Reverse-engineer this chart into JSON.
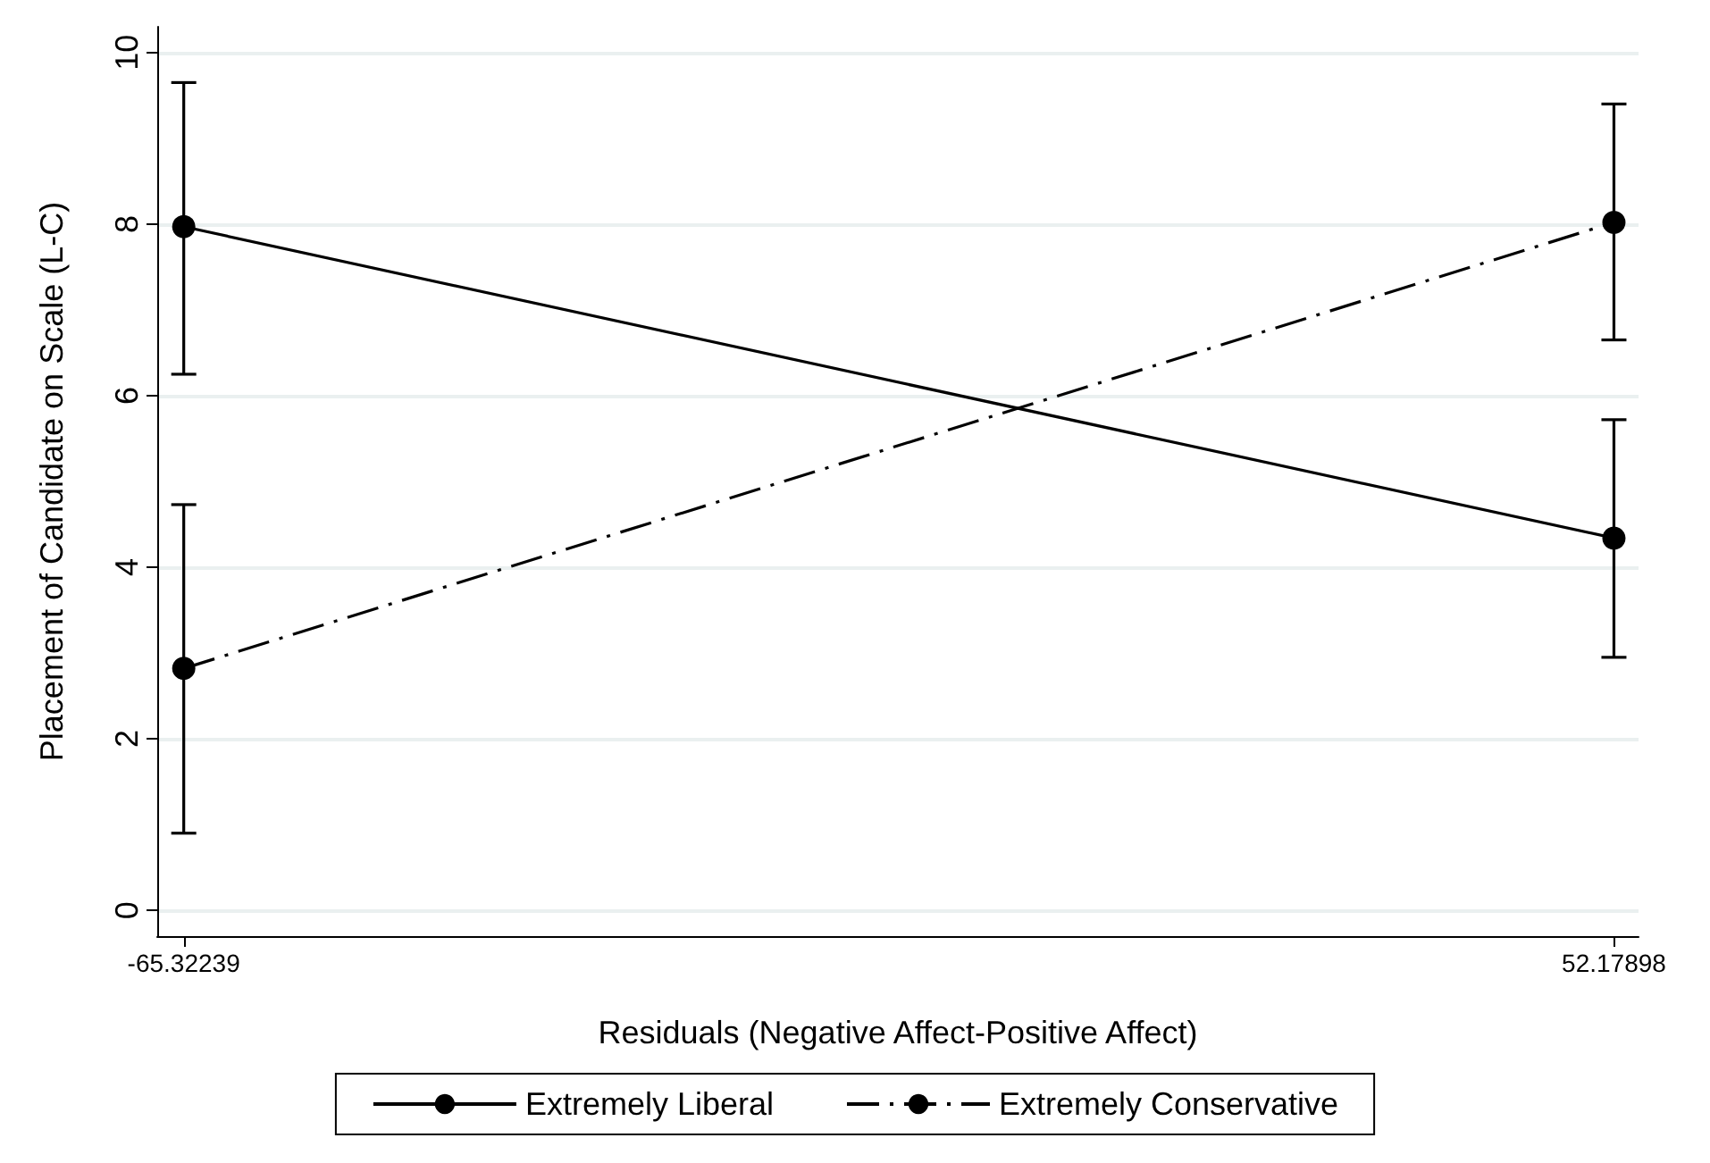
{
  "chart_data": {
    "type": "line",
    "xlabel": "Residuals (Negative Affect-Positive Affect)",
    "ylabel": "Placement of Candidate on Scale (L-C)",
    "x": [
      -65.32239,
      52.17898
    ],
    "xlim": [
      -67.5,
      54.2
    ],
    "xticks": [
      -65.32239,
      52.17898
    ],
    "ylim": [
      -0.3,
      10.3
    ],
    "yticks": [
      0,
      2,
      4,
      6,
      8,
      10
    ],
    "series": [
      {
        "name": "Extremely Liberal",
        "color": "#000000",
        "line_style": "solid",
        "values": [
          7.97,
          4.34
        ],
        "errors": [
          [
            6.25,
            9.65
          ],
          [
            2.95,
            5.72
          ]
        ]
      },
      {
        "name": "Extremely Conservative",
        "color": "#000000",
        "line_style": "dashed",
        "values": [
          2.82,
          8.02
        ],
        "errors": [
          [
            0.9,
            4.73
          ],
          [
            6.65,
            9.4
          ]
        ]
      }
    ],
    "grid": "y",
    "legend": "bottom",
    "marker": "circle"
  }
}
